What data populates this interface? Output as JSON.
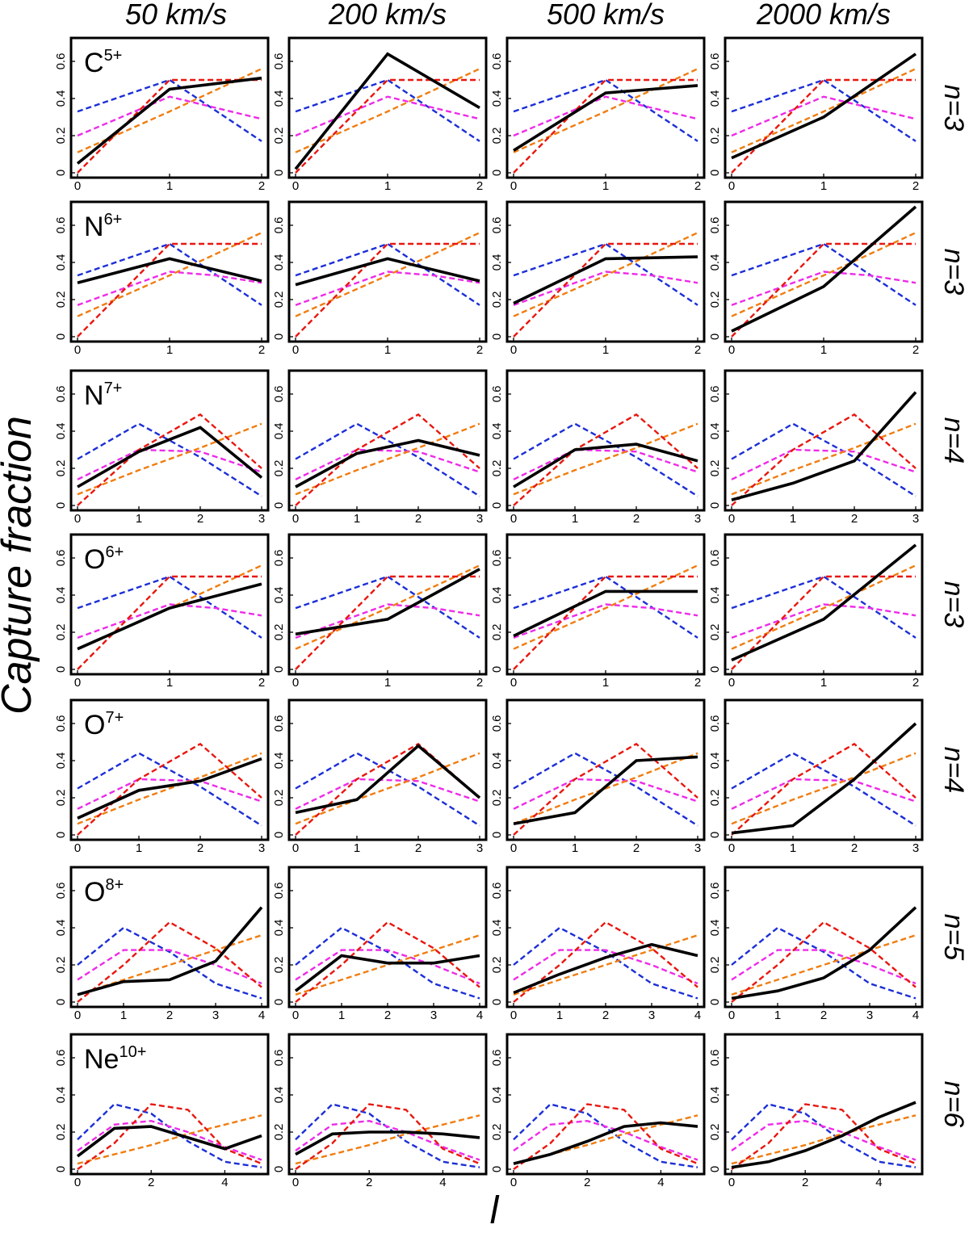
{
  "figure": {
    "ylabel": "Capture fraction",
    "xlabel": "l",
    "ylim": [
      0,
      0.7
    ],
    "yticks": [
      "0",
      "0.2",
      "0.4",
      "0.6"
    ],
    "column_titles": [
      "50 km/s",
      "200 km/s",
      "500 km/s",
      "2000 km/s"
    ],
    "series_colors": {
      "model_red": "#e8170f",
      "model_blue": "#1c2fd6",
      "model_magenta": "#ee2be8",
      "model_orange": "#f07d10",
      "simulation": "#000000"
    }
  },
  "chart_data": [
    {
      "type": "line",
      "ion": "C",
      "charge": "5+",
      "n_label": "n=3",
      "x": [
        0,
        1,
        2
      ],
      "xticks": [
        "0",
        "1",
        "2"
      ],
      "models": {
        "red": {
          "x": [
            0,
            1,
            2
          ],
          "y": [
            0.0,
            0.5,
            0.5
          ]
        },
        "blue": {
          "x": [
            0,
            1,
            2
          ],
          "y": [
            0.33,
            0.5,
            0.17
          ]
        },
        "magenta": {
          "x": [
            0,
            1,
            2
          ],
          "y": [
            0.2,
            0.41,
            0.29
          ]
        },
        "orange": {
          "x": [
            0,
            1,
            2
          ],
          "y": [
            0.11,
            0.33,
            0.56
          ]
        }
      },
      "series": [
        {
          "name": "50 km/s",
          "values": [
            0.05,
            0.45,
            0.51
          ]
        },
        {
          "name": "200 km/s",
          "values": [
            0.02,
            0.64,
            0.35
          ]
        },
        {
          "name": "500 km/s",
          "values": [
            0.12,
            0.43,
            0.47
          ]
        },
        {
          "name": "2000 km/s",
          "values": [
            0.08,
            0.3,
            0.64
          ]
        }
      ]
    },
    {
      "type": "line",
      "ion": "N",
      "charge": "6+",
      "n_label": "n=3",
      "x": [
        0,
        1,
        2
      ],
      "xticks": [
        "0",
        "1",
        "2"
      ],
      "models": {
        "red": {
          "x": [
            0,
            1,
            2
          ],
          "y": [
            0.0,
            0.5,
            0.5
          ]
        },
        "blue": {
          "x": [
            0,
            1,
            2
          ],
          "y": [
            0.33,
            0.5,
            0.17
          ]
        },
        "magenta": {
          "x": [
            0,
            1,
            1.5,
            2
          ],
          "y": [
            0.17,
            0.35,
            0.33,
            0.29
          ]
        },
        "orange": {
          "x": [
            0,
            1,
            2
          ],
          "y": [
            0.11,
            0.33,
            0.56
          ]
        }
      },
      "series": [
        {
          "name": "50 km/s",
          "values": [
            0.29,
            0.42,
            0.3
          ]
        },
        {
          "name": "200 km/s",
          "values": [
            0.28,
            0.42,
            0.3
          ]
        },
        {
          "name": "500 km/s",
          "values": [
            0.18,
            0.42,
            0.43
          ]
        },
        {
          "name": "2000 km/s",
          "values": [
            0.03,
            0.27,
            0.7
          ]
        }
      ]
    },
    {
      "type": "line",
      "ion": "N",
      "charge": "7+",
      "n_label": "n=4",
      "x": [
        0,
        1,
        2,
        3
      ],
      "xticks": [
        "0",
        "1",
        "2",
        "3"
      ],
      "models": {
        "red": {
          "x": [
            0,
            1,
            2,
            3
          ],
          "y": [
            0.0,
            0.3,
            0.49,
            0.2
          ]
        },
        "blue": {
          "x": [
            0,
            1,
            2,
            3
          ],
          "y": [
            0.25,
            0.44,
            0.26,
            0.05
          ]
        },
        "magenta": {
          "x": [
            0,
            1,
            2,
            3
          ],
          "y": [
            0.14,
            0.3,
            0.29,
            0.18
          ]
        },
        "orange": {
          "x": [
            0,
            1,
            2,
            3
          ],
          "y": [
            0.06,
            0.19,
            0.31,
            0.44
          ]
        }
      },
      "series": [
        {
          "name": "50 km/s",
          "values": [
            0.1,
            0.29,
            0.42,
            0.15
          ]
        },
        {
          "name": "200 km/s",
          "values": [
            0.1,
            0.28,
            0.35,
            0.27
          ]
        },
        {
          "name": "500 km/s",
          "values": [
            0.1,
            0.3,
            0.33,
            0.24
          ]
        },
        {
          "name": "2000 km/s",
          "values": [
            0.03,
            0.12,
            0.24,
            0.61
          ]
        }
      ]
    },
    {
      "type": "line",
      "ion": "O",
      "charge": "6+",
      "n_label": "n=3",
      "x": [
        0,
        1,
        2
      ],
      "xticks": [
        "0",
        "1",
        "2"
      ],
      "models": {
        "red": {
          "x": [
            0,
            1,
            2
          ],
          "y": [
            0.0,
            0.5,
            0.5
          ]
        },
        "blue": {
          "x": [
            0,
            1,
            2
          ],
          "y": [
            0.33,
            0.5,
            0.17
          ]
        },
        "magenta": {
          "x": [
            0,
            1,
            1.5,
            2
          ],
          "y": [
            0.17,
            0.35,
            0.33,
            0.29
          ]
        },
        "orange": {
          "x": [
            0,
            1,
            2
          ],
          "y": [
            0.11,
            0.33,
            0.56
          ]
        }
      },
      "series": [
        {
          "name": "50 km/s",
          "values": [
            0.11,
            0.33,
            0.46
          ]
        },
        {
          "name": "200 km/s",
          "values": [
            0.19,
            0.27,
            0.54
          ]
        },
        {
          "name": "500 km/s",
          "values": [
            0.18,
            0.42,
            0.42
          ]
        },
        {
          "name": "2000 km/s",
          "values": [
            0.05,
            0.27,
            0.67
          ]
        }
      ]
    },
    {
      "type": "line",
      "ion": "O",
      "charge": "7+",
      "n_label": "n=4",
      "x": [
        0,
        1,
        2,
        3
      ],
      "xticks": [
        "0",
        "1",
        "2",
        "3"
      ],
      "models": {
        "red": {
          "x": [
            0,
            1,
            2,
            3
          ],
          "y": [
            0.0,
            0.3,
            0.49,
            0.2
          ]
        },
        "blue": {
          "x": [
            0,
            1,
            2,
            3
          ],
          "y": [
            0.25,
            0.44,
            0.26,
            0.05
          ]
        },
        "magenta": {
          "x": [
            0,
            1,
            2,
            3
          ],
          "y": [
            0.14,
            0.3,
            0.29,
            0.18
          ]
        },
        "orange": {
          "x": [
            0,
            1,
            2,
            3
          ],
          "y": [
            0.06,
            0.19,
            0.31,
            0.44
          ]
        }
      },
      "series": [
        {
          "name": "50 km/s",
          "values": [
            0.09,
            0.24,
            0.29,
            0.41
          ]
        },
        {
          "name": "200 km/s",
          "values": [
            0.12,
            0.19,
            0.48,
            0.2
          ]
        },
        {
          "name": "500 km/s",
          "values": [
            0.06,
            0.12,
            0.4,
            0.42
          ]
        },
        {
          "name": "2000 km/s",
          "values": [
            0.01,
            0.05,
            0.3,
            0.6
          ]
        }
      ]
    },
    {
      "type": "line",
      "ion": "O",
      "charge": "8+",
      "n_label": "n=5",
      "x": [
        0,
        1,
        2,
        3,
        4
      ],
      "xticks": [
        "0",
        "1",
        "2",
        "3",
        "4"
      ],
      "models": {
        "red": {
          "x": [
            0,
            1,
            2,
            3,
            4
          ],
          "y": [
            0.0,
            0.2,
            0.43,
            0.29,
            0.08
          ]
        },
        "blue": {
          "x": [
            0,
            1,
            2,
            3,
            4
          ],
          "y": [
            0.2,
            0.4,
            0.27,
            0.1,
            0.02
          ]
        },
        "magenta": {
          "x": [
            0,
            1,
            2,
            3,
            4
          ],
          "y": [
            0.12,
            0.28,
            0.28,
            0.2,
            0.1
          ]
        },
        "orange": {
          "x": [
            0,
            1,
            2,
            3,
            4
          ],
          "y": [
            0.04,
            0.12,
            0.2,
            0.28,
            0.36
          ]
        }
      },
      "series": [
        {
          "name": "50 km/s",
          "values": [
            0.04,
            0.11,
            0.12,
            0.22,
            0.51
          ]
        },
        {
          "name": "200 km/s",
          "values": [
            0.06,
            0.25,
            0.21,
            0.21,
            0.25
          ]
        },
        {
          "name": "500 km/s",
          "values": [
            0.05,
            0.15,
            0.24,
            0.31,
            0.25
          ]
        },
        {
          "name": "2000 km/s",
          "values": [
            0.02,
            0.06,
            0.13,
            0.28,
            0.51
          ]
        }
      ]
    },
    {
      "type": "line",
      "ion": "Ne",
      "charge": "10+",
      "n_label": "n=6",
      "x": [
        0,
        1,
        2,
        3,
        4,
        5
      ],
      "xticks": [
        "0",
        "2",
        "4"
      ],
      "models": {
        "red": {
          "x": [
            0,
            1,
            2,
            3,
            4,
            5
          ],
          "y": [
            0.0,
            0.14,
            0.35,
            0.32,
            0.11,
            0.03
          ]
        },
        "blue": {
          "x": [
            0,
            1,
            2,
            3,
            4,
            5
          ],
          "y": [
            0.16,
            0.35,
            0.3,
            0.15,
            0.04,
            0.01
          ]
        },
        "magenta": {
          "x": [
            0,
            1,
            2,
            3,
            4,
            5
          ],
          "y": [
            0.1,
            0.24,
            0.26,
            0.2,
            0.12,
            0.05
          ]
        },
        "orange": {
          "x": [
            0,
            1,
            2,
            3,
            4,
            5
          ],
          "y": [
            0.03,
            0.08,
            0.13,
            0.19,
            0.24,
            0.29
          ]
        }
      },
      "series": [
        {
          "name": "50 km/s",
          "values": [
            0.07,
            0.22,
            0.23,
            0.17,
            0.11,
            0.18
          ]
        },
        {
          "name": "200 km/s",
          "values": [
            0.08,
            0.19,
            0.2,
            0.2,
            0.19,
            0.17
          ]
        },
        {
          "name": "500 km/s",
          "values": [
            0.03,
            0.08,
            0.15,
            0.23,
            0.25,
            0.23
          ]
        },
        {
          "name": "2000 km/s",
          "values": [
            0.01,
            0.04,
            0.1,
            0.18,
            0.28,
            0.36
          ]
        }
      ]
    }
  ]
}
